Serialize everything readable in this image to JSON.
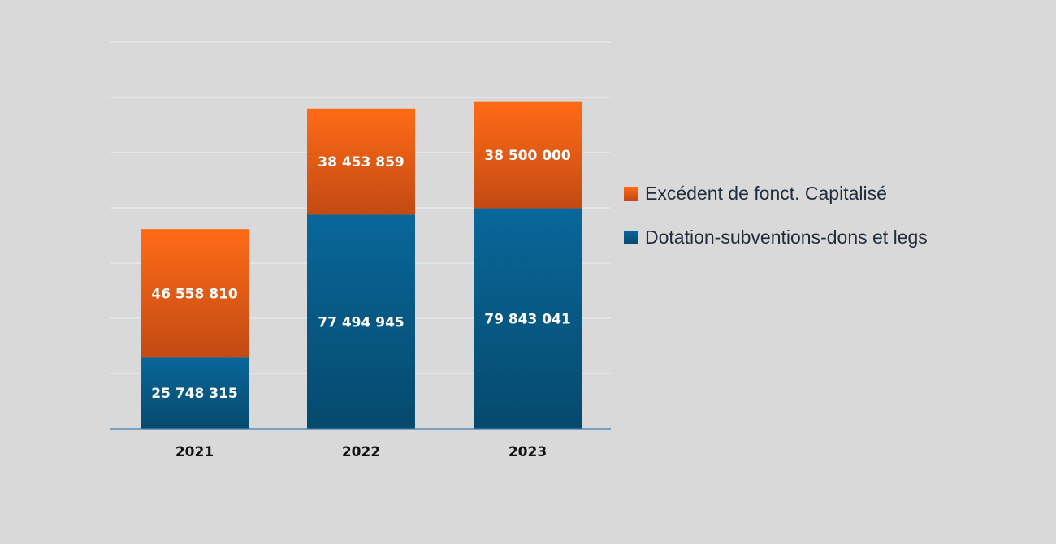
{
  "chart_data": {
    "type": "bar",
    "stacked": true,
    "categories": [
      "2021",
      "2022",
      "2023"
    ],
    "series": [
      {
        "name": "Dotation-subventions-dons et legs",
        "values": [
          25748315,
          77494945,
          79843041
        ],
        "labels": [
          "25 748 315",
          "77 494 945",
          "79 843 041"
        ],
        "color": "#0a6491"
      },
      {
        "name": "Excédent de fonct. Capitalisé",
        "values": [
          46558810,
          38453859,
          38500000
        ],
        "labels": [
          "46 558 810",
          "38 453 859",
          "38 500 000"
        ],
        "color": "#f26a1b"
      }
    ],
    "legend_order": [
      1,
      0
    ],
    "legend_position": "right",
    "ylim": [
      0,
      140000000
    ],
    "grid": true,
    "title": "",
    "xlabel": "",
    "ylabel": ""
  }
}
